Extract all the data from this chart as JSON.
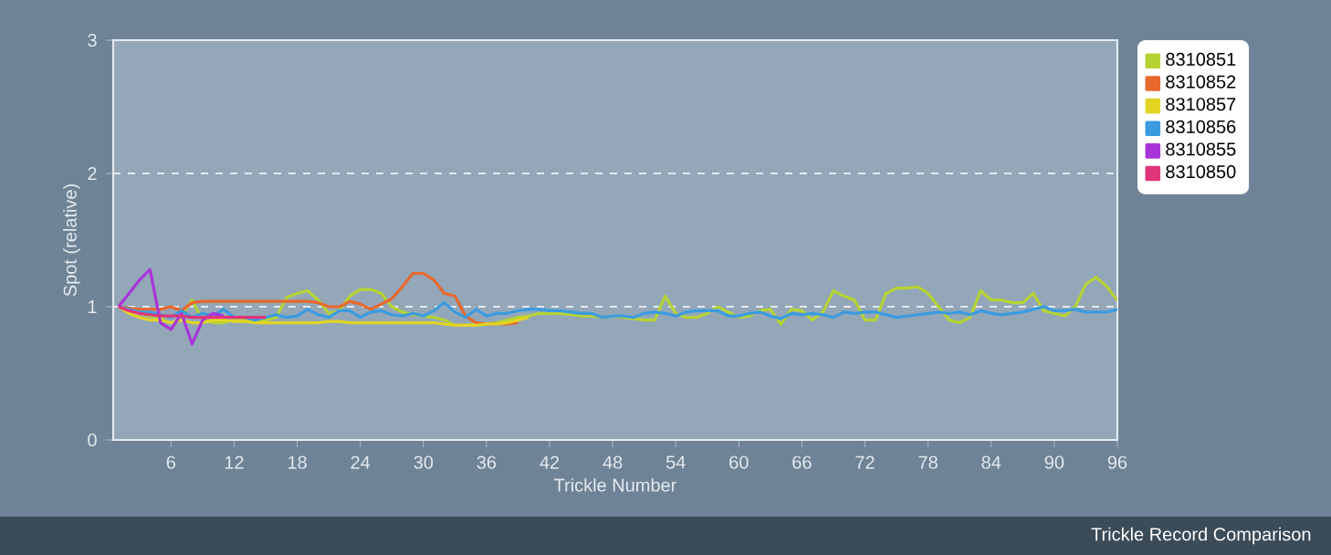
{
  "chart_data": {
    "type": "line",
    "title": "Trickle Record Comparison",
    "xlabel": "Trickle Number",
    "ylabel": "Spot (relative)",
    "x": [
      1,
      2,
      3,
      4,
      5,
      6,
      7,
      8,
      9,
      10,
      11,
      12,
      13,
      14,
      15,
      16,
      17,
      18,
      19,
      20,
      21,
      22,
      23,
      24,
      25,
      26,
      27,
      28,
      29,
      30,
      31,
      32,
      33,
      34,
      35,
      36,
      37,
      38,
      39,
      40,
      41,
      42,
      43,
      44,
      45,
      46,
      47,
      48,
      49,
      50,
      51,
      52,
      53,
      54,
      55,
      56,
      57,
      58,
      59,
      60,
      61,
      62,
      63,
      64,
      65,
      66,
      67,
      68,
      69,
      70,
      71,
      72,
      73,
      74,
      75,
      76,
      77,
      78,
      79,
      80,
      81,
      82,
      83,
      84,
      85,
      86,
      87,
      88,
      89,
      90,
      91,
      92,
      93,
      94,
      95,
      96
    ],
    "xlim": [
      0.5,
      96
    ],
    "xticks": [
      6,
      12,
      18,
      24,
      30,
      36,
      42,
      48,
      54,
      60,
      66,
      72,
      78,
      84,
      90,
      96
    ],
    "ylim": [
      0,
      3
    ],
    "yticks": [
      0,
      1,
      2,
      3
    ],
    "grid": "y",
    "legend": "top right",
    "series": [
      {
        "name": "8310851",
        "color": "#b5d334",
        "values": [
          1.0,
          0.97,
          0.95,
          0.93,
          0.92,
          0.93,
          0.93,
          1.05,
          0.9,
          0.88,
          0.88,
          0.9,
          0.9,
          0.9,
          0.9,
          0.92,
          1.07,
          1.1,
          1.12,
          1.05,
          0.95,
          0.97,
          1.08,
          1.13,
          1.13,
          1.1,
          1.0,
          0.96,
          0.94,
          0.93,
          0.92,
          0.9,
          0.86,
          0.86,
          0.87,
          0.87,
          0.88,
          0.9,
          0.92,
          0.93,
          0.95,
          0.95,
          0.95,
          0.94,
          0.93,
          0.93,
          0.92,
          0.93,
          0.92,
          0.91,
          0.9,
          0.9,
          1.08,
          0.95,
          0.92,
          0.92,
          0.95,
          1.0,
          0.96,
          0.92,
          0.93,
          0.97,
          0.98,
          0.87,
          0.98,
          0.97,
          0.9,
          0.96,
          1.12,
          1.08,
          1.05,
          0.9,
          0.9,
          1.1,
          1.14,
          1.14,
          1.15,
          1.1,
          1.0,
          0.9,
          0.88,
          0.92,
          1.12,
          1.05,
          1.05,
          1.03,
          1.03,
          1.1,
          0.97,
          0.95,
          0.93,
          1.0,
          1.17,
          1.22,
          1.15,
          1.05
        ]
      },
      {
        "name": "8310852",
        "color": "#e8682d",
        "values": [
          1.0,
          0.99,
          0.98,
          0.98,
          0.98,
          1.0,
          0.97,
          1.03,
          1.04,
          1.04,
          1.04,
          1.04,
          1.04,
          1.04,
          1.04,
          1.04,
          1.04,
          1.04,
          1.04,
          1.03,
          1.0,
          1.0,
          1.04,
          1.02,
          0.98,
          1.02,
          1.06,
          1.15,
          1.25,
          1.25,
          1.2,
          1.1,
          1.08,
          0.93,
          0.88,
          0.87,
          0.87,
          0.87,
          0.88,
          null,
          null,
          null,
          null,
          null,
          null,
          null,
          null,
          null,
          null,
          null,
          null,
          null,
          null,
          null,
          null,
          null,
          null,
          null,
          null,
          null,
          null,
          null,
          null,
          null,
          null,
          null,
          null,
          null,
          null,
          null,
          null,
          null,
          null,
          null,
          null,
          null,
          null,
          null,
          null,
          null,
          null,
          null,
          null,
          null,
          null,
          null,
          null,
          null,
          null,
          null,
          null,
          null,
          null,
          null,
          null,
          null
        ]
      },
      {
        "name": "8310857",
        "color": "#e3d424",
        "values": [
          1.0,
          0.95,
          0.92,
          0.9,
          0.9,
          0.88,
          0.9,
          0.88,
          0.88,
          0.9,
          0.9,
          0.89,
          0.89,
          0.88,
          0.88,
          0.88,
          0.88,
          0.88,
          0.88,
          0.88,
          0.89,
          0.89,
          0.88,
          0.88,
          0.88,
          0.88,
          0.88,
          0.88,
          0.88,
          0.88,
          0.88,
          0.87,
          0.86,
          0.86,
          0.86,
          0.87,
          0.87,
          0.88,
          0.9,
          0.92,
          null,
          null,
          null,
          null,
          null,
          null,
          null,
          null,
          null,
          null,
          null,
          null,
          null,
          null,
          null,
          null,
          null,
          null,
          null,
          null,
          null,
          null,
          null,
          null,
          null,
          null,
          null,
          null,
          null,
          null,
          null,
          null,
          null,
          null,
          null,
          null,
          null,
          null,
          null,
          null,
          null,
          null,
          null,
          null,
          null,
          null,
          null,
          null,
          null,
          null,
          null,
          null,
          null,
          null,
          null,
          null
        ]
      },
      {
        "name": "8310856",
        "color": "#3b9be0",
        "values": [
          1.0,
          0.98,
          0.96,
          0.96,
          0.94,
          0.92,
          0.97,
          0.92,
          0.95,
          0.93,
          0.98,
          0.92,
          0.92,
          0.9,
          0.92,
          0.94,
          0.92,
          0.93,
          0.98,
          0.94,
          0.92,
          0.97,
          0.97,
          0.92,
          0.96,
          0.97,
          0.94,
          0.93,
          0.95,
          0.93,
          0.97,
          1.03,
          0.96,
          0.92,
          0.98,
          0.93,
          0.95,
          0.95,
          0.97,
          0.98,
          0.98,
          0.97,
          0.97,
          0.96,
          0.95,
          0.95,
          0.92,
          0.93,
          0.93,
          0.92,
          0.95,
          0.96,
          0.95,
          0.93,
          0.96,
          0.97,
          0.97,
          0.97,
          0.93,
          0.93,
          0.95,
          0.96,
          0.93,
          0.91,
          0.95,
          0.94,
          0.95,
          0.94,
          0.92,
          0.96,
          0.95,
          0.96,
          0.96,
          0.94,
          0.92,
          0.93,
          0.94,
          0.95,
          0.96,
          0.95,
          0.96,
          0.94,
          0.97,
          0.95,
          0.94,
          0.95,
          0.96,
          0.98,
          1.0,
          0.97,
          0.97,
          0.98,
          0.96,
          0.96,
          0.96,
          0.98
        ]
      },
      {
        "name": "8310855",
        "color": "#a835d8",
        "values": [
          1.0,
          1.1,
          1.2,
          1.28,
          0.88,
          0.83,
          0.95,
          0.72,
          0.9,
          0.95,
          0.93,
          null,
          null,
          null,
          null,
          null,
          null,
          null,
          null,
          null,
          null,
          null,
          null,
          null,
          null,
          null,
          null,
          null,
          null,
          null,
          null,
          null,
          null,
          null,
          null,
          null,
          null,
          null,
          null,
          null,
          null,
          null,
          null,
          null,
          null,
          null,
          null,
          null,
          null,
          null,
          null,
          null,
          null,
          null,
          null,
          null,
          null,
          null,
          null,
          null,
          null,
          null,
          null,
          null,
          null,
          null,
          null,
          null,
          null,
          null,
          null,
          null,
          null,
          null,
          null,
          null,
          null,
          null,
          null,
          null,
          null,
          null,
          null,
          null,
          null,
          null,
          null,
          null,
          null,
          null,
          null,
          null,
          null,
          null,
          null,
          null
        ]
      },
      {
        "name": "8310850",
        "color": "#e0357a",
        "values": [
          1.0,
          0.97,
          0.95,
          0.94,
          0.93,
          0.93,
          0.93,
          0.92,
          0.92,
          0.92,
          0.92,
          0.92,
          0.92,
          0.92,
          0.92,
          null,
          null,
          null,
          null,
          null,
          null,
          null,
          null,
          null,
          null,
          null,
          null,
          null,
          null,
          null,
          null,
          null,
          null,
          null,
          null,
          null,
          null,
          null,
          null,
          null,
          null,
          null,
          null,
          null,
          null,
          null,
          null,
          null,
          null,
          null,
          null,
          null,
          null,
          null,
          null,
          null,
          null,
          null,
          null,
          null,
          null,
          null,
          null,
          null,
          null,
          null,
          null,
          null,
          null,
          null,
          null,
          null,
          null,
          null,
          null,
          null,
          null,
          null,
          null,
          null,
          null,
          null,
          null,
          null,
          null,
          null,
          null,
          null,
          null,
          null,
          null,
          null,
          null,
          null,
          null,
          null
        ]
      }
    ]
  }
}
